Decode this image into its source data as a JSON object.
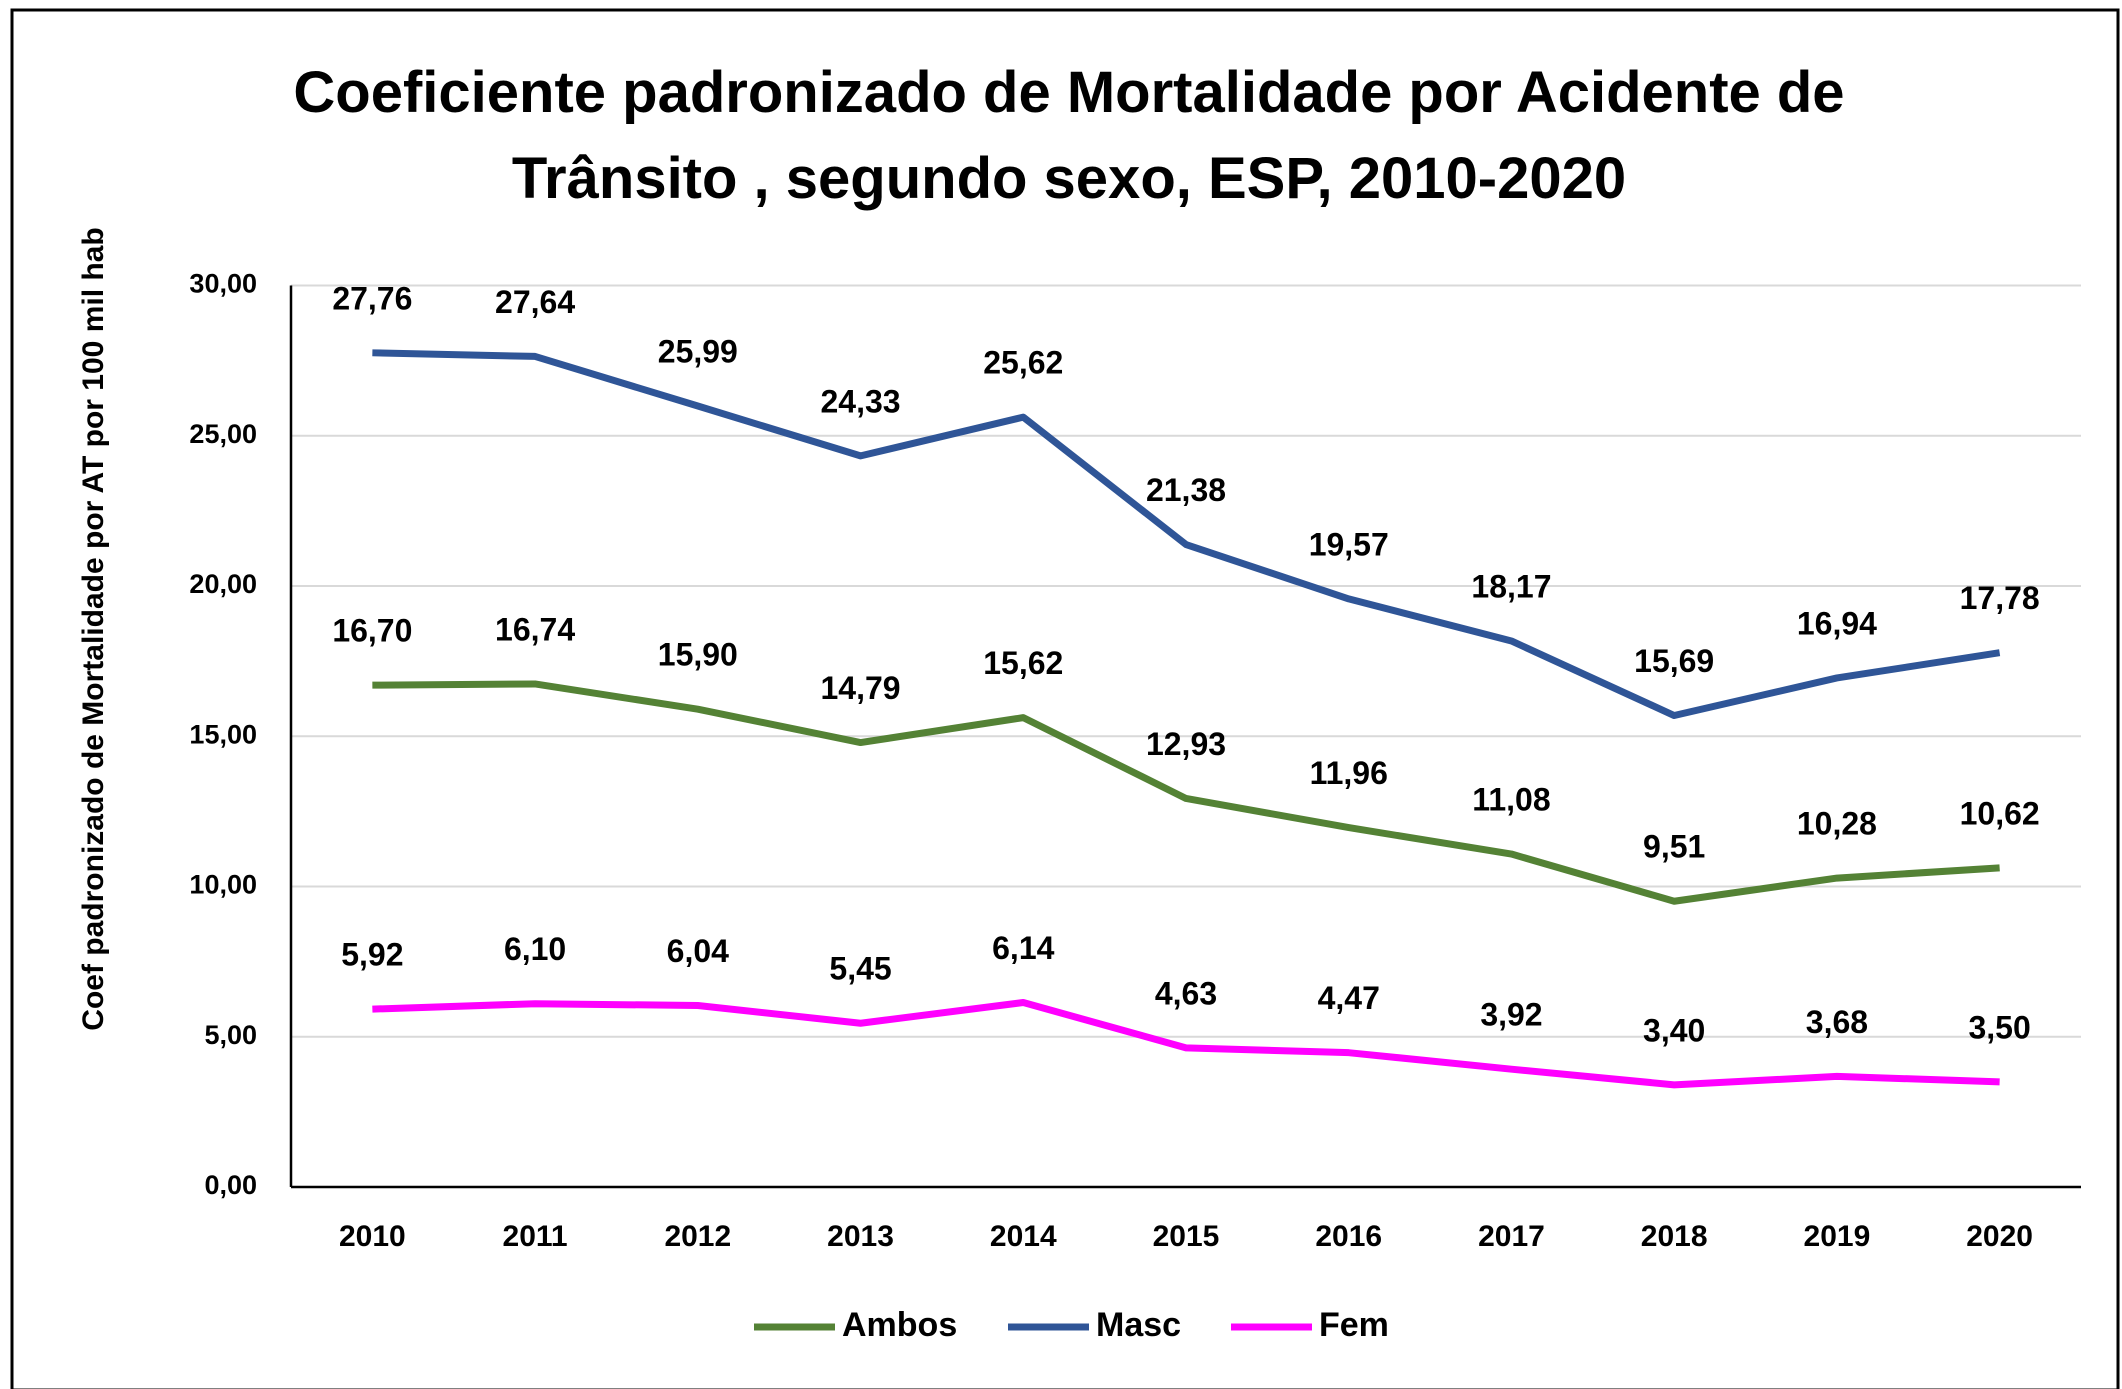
{
  "chart_data": {
    "type": "line",
    "title": "Coeficiente padronizado de Mortalidade por Acidente de Trânsito , segundo sexo, ESP, 2010-2020",
    "y_axis_label": "Coef padronizado de Mortalidade por AT por 100 mil hab",
    "categories": [
      "2010",
      "2011",
      "2012",
      "2013",
      "2014",
      "2015",
      "2016",
      "2017",
      "2018",
      "2019",
      "2020"
    ],
    "series": [
      {
        "name": "Ambos",
        "color": "#548235",
        "values": [
          16.7,
          16.74,
          15.9,
          14.79,
          15.62,
          12.93,
          11.96,
          11.08,
          9.51,
          10.28,
          10.62
        ],
        "value_labels": [
          "16,70",
          "16,74",
          "15,90",
          "14,79",
          "15,62",
          "12,93",
          "11,96",
          "11,08",
          "9,51",
          "10,28",
          "10,62"
        ]
      },
      {
        "name": "Masc",
        "color": "#2f5597",
        "values": [
          27.76,
          27.64,
          25.99,
          24.33,
          25.62,
          21.38,
          19.57,
          18.17,
          15.69,
          16.94,
          17.78
        ],
        "value_labels": [
          "27,76",
          "27,64",
          "25,99",
          "24,33",
          "25,62",
          "21,38",
          "19,57",
          "18,17",
          "15,69",
          "16,94",
          "17,78"
        ]
      },
      {
        "name": "Fem",
        "color": "#ff00ff",
        "values": [
          5.92,
          6.1,
          6.04,
          5.45,
          6.14,
          4.63,
          4.47,
          3.92,
          3.4,
          3.68,
          3.5
        ],
        "value_labels": [
          "5,92",
          "6,10",
          "6,04",
          "5,45",
          "6,14",
          "4,63",
          "4,47",
          "3,92",
          "3,40",
          "3,68",
          "3,50"
        ]
      }
    ],
    "ylim": [
      0,
      30
    ],
    "yticks": [
      {
        "value": 0,
        "label": "0,00"
      },
      {
        "value": 5,
        "label": "5,00"
      },
      {
        "value": 10,
        "label": "10,00"
      },
      {
        "value": 15,
        "label": "15,00"
      },
      {
        "value": 20,
        "label": "20,00"
      },
      {
        "value": 25,
        "label": "25,00"
      },
      {
        "value": 30,
        "label": "30,00"
      }
    ],
    "grid": true,
    "legend": "bottom"
  }
}
